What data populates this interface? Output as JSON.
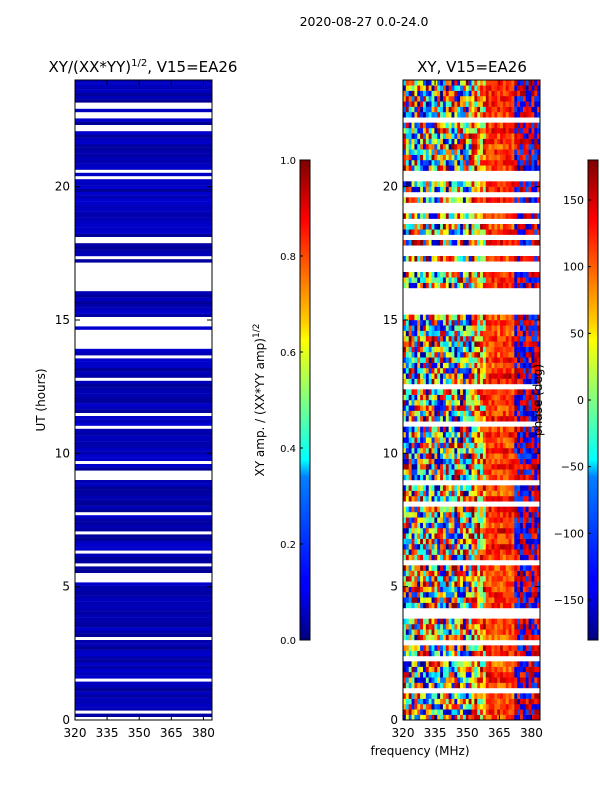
{
  "suptitle": "2020-08-27 0.0-24.0",
  "colors": {
    "background": "#ffffff",
    "axis": "#000000",
    "amp_low": "#00007f",
    "gap": "#ffffff"
  },
  "chart_data": [
    {
      "type": "heatmap",
      "name": "xy-normalized-amplitude",
      "title_main": "XY/(XX*YY)",
      "title_exp": "1/2",
      "title_tail": ", V15=EA26",
      "xlabel": "",
      "ylabel": "UT (hours)",
      "xlim": [
        320,
        384
      ],
      "ylim": [
        0,
        24
      ],
      "xticks": [
        320,
        335,
        350,
        365,
        380
      ],
      "yticks": [
        0,
        5,
        10,
        15,
        20
      ],
      "colormap": "jet",
      "color_limits": [
        0,
        1
      ],
      "typical_value": 0.02,
      "no_data_ut_ranges": [
        [
          16.3,
          17.1
        ],
        [
          5.3,
          5.5
        ],
        [
          9.2,
          9.4
        ]
      ],
      "colorbar": {
        "label_main": "XY amp. / (XX*YY amp)",
        "label_exp": "1/2",
        "ticks": [
          "0.0",
          "0.2",
          "0.4",
          "0.6",
          "0.8",
          "1.0"
        ],
        "tick_values": [
          0,
          0.2,
          0.4,
          0.6,
          0.8,
          1.0
        ]
      }
    },
    {
      "type": "heatmap",
      "name": "xy-phase",
      "title": "XY, V15=EA26",
      "xlabel": "frequency (MHz)",
      "ylabel": "",
      "xlim": [
        320,
        384
      ],
      "ylim": [
        0,
        24
      ],
      "xticks": [
        320,
        335,
        350,
        365,
        380
      ],
      "yticks": [
        0,
        5,
        10,
        15,
        20
      ],
      "colormap": "jet",
      "color_limits": [
        -180,
        180
      ],
      "no_data_ut_ranges": [
        [
          15.2,
          16.2
        ]
      ],
      "colorbar": {
        "label": "phase (deg)",
        "ticks": [
          "150",
          "100",
          "50",
          "0",
          "−50",
          "−100",
          "−150"
        ],
        "tick_values": [
          150,
          100,
          50,
          0,
          -50,
          -100,
          -150
        ]
      }
    }
  ]
}
